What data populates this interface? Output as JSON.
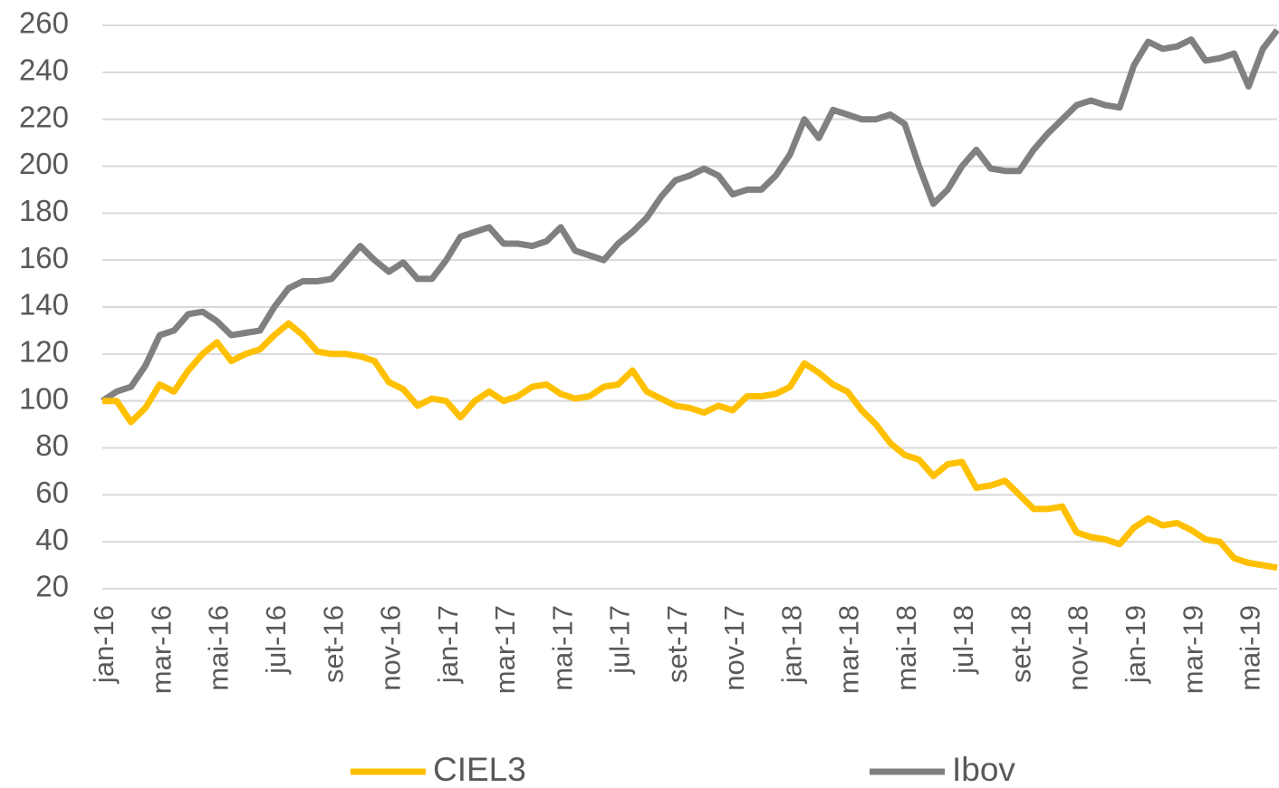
{
  "chart_data": {
    "type": "line",
    "categories": [
      "jan-16",
      null,
      null,
      null,
      "mar-16",
      null,
      null,
      null,
      "mai-16",
      null,
      null,
      null,
      "jul-16",
      null,
      null,
      null,
      "set-16",
      null,
      null,
      null,
      "nov-16",
      null,
      null,
      null,
      "jan-17",
      null,
      null,
      null,
      "mar-17",
      null,
      null,
      null,
      "mai-17",
      null,
      null,
      null,
      "jul-17",
      null,
      null,
      null,
      "set-17",
      null,
      null,
      null,
      "nov-17",
      null,
      null,
      null,
      "jan-18",
      null,
      null,
      null,
      "mar-18",
      null,
      null,
      null,
      "mai-18",
      null,
      null,
      null,
      "jul-18",
      null,
      null,
      null,
      "set-18",
      null,
      null,
      null,
      "nov-18",
      null,
      null,
      null,
      "jan-19",
      null,
      null,
      null,
      "mar-19",
      null,
      null,
      null,
      "mai-19",
      null,
      null
    ],
    "series": [
      {
        "name": "CIEL3",
        "color": "#FFC000",
        "values": [
          100,
          100,
          91,
          97,
          107,
          104,
          113,
          120,
          125,
          117,
          120,
          122,
          128,
          133,
          128,
          121,
          120,
          120,
          119,
          117,
          108,
          105,
          98,
          101,
          100,
          93,
          100,
          104,
          100,
          102,
          106,
          107,
          103,
          101,
          102,
          106,
          107,
          113,
          104,
          101,
          98,
          97,
          95,
          98,
          96,
          102,
          102,
          103,
          106,
          116,
          112,
          107,
          104,
          96,
          90,
          82,
          77,
          75,
          68,
          73,
          74,
          63,
          64,
          66,
          60,
          54,
          54,
          55,
          44,
          42,
          41,
          39,
          46,
          50,
          47,
          48,
          45,
          41,
          40,
          33,
          31,
          30,
          29
        ]
      },
      {
        "name": "Ibov",
        "color": "#808080",
        "values": [
          100,
          104,
          106,
          115,
          128,
          130,
          137,
          138,
          134,
          128,
          129,
          130,
          140,
          148,
          151,
          151,
          152,
          159,
          166,
          160,
          155,
          159,
          152,
          152,
          160,
          170,
          172,
          174,
          167,
          167,
          166,
          168,
          174,
          164,
          162,
          160,
          167,
          172,
          178,
          187,
          194,
          196,
          199,
          196,
          188,
          190,
          190,
          196,
          205,
          220,
          212,
          224,
          222,
          220,
          220,
          222,
          218,
          200,
          184,
          190,
          200,
          207,
          199,
          198,
          198,
          207,
          214,
          220,
          226,
          228,
          226,
          225,
          243,
          253,
          250,
          251,
          254,
          245,
          246,
          248,
          234,
          250,
          258
        ]
      }
    ],
    "ylim": [
      20,
      260
    ],
    "yticks": [
      20,
      40,
      60,
      80,
      100,
      120,
      140,
      160,
      180,
      200,
      220,
      240,
      260
    ],
    "grid": true,
    "legend": "bottom"
  }
}
